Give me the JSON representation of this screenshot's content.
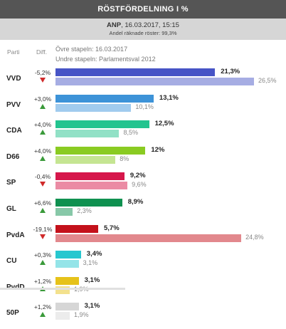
{
  "header": {
    "title": "RÖSTFÖRDELNING  I  %",
    "source_bold": "ANP",
    "source_rest": ", 16.03.2017, 15:15",
    "counted": "Andel räknade röster: 99,3%"
  },
  "columns": {
    "party": "Parti",
    "diff": "Diff."
  },
  "legend": {
    "upper": "Övre stapeln: 16.03.2017",
    "lower": "Undre stapeln: Parlamentsval 2012"
  },
  "chart_data": {
    "type": "bar",
    "title": "RÖSTFÖRDELNING  I  %",
    "categories": [
      "VVD",
      "PVV",
      "CDA",
      "D66",
      "SP",
      "GL",
      "PvdA",
      "CU",
      "PvdD",
      "50P"
    ],
    "series": [
      {
        "name": "Övre stapeln: 16.03.2017",
        "values": [
          21.3,
          13.1,
          12.5,
          12,
          9.2,
          8.9,
          5.7,
          3.4,
          3.1,
          3.1
        ],
        "labels": [
          "21,3%",
          "13,1%",
          "12,5%",
          "12%",
          "9,2%",
          "8,9%",
          "5,7%",
          "3,4%",
          "3,1%",
          "3,1%"
        ]
      },
      {
        "name": "Undre stapeln: Parlamentsval 2012",
        "values": [
          26.5,
          10.1,
          8.5,
          8,
          9.6,
          2.3,
          24.8,
          3.1,
          1.9,
          1.9
        ],
        "labels": [
          "26,5%",
          "10,1%",
          "8,5%",
          "8%",
          "9,6%",
          "2,3%",
          "24,8%",
          "3,1%",
          "1,9%",
          "1,9%"
        ]
      }
    ],
    "diff": [
      "-5,2%",
      "+3,0%",
      "+4,0%",
      "+4,0%",
      "-0,4%",
      "+6,6%",
      "-19,1%",
      "+0,3%",
      "+1,2%",
      "+1,2%"
    ],
    "direction": [
      "down",
      "up",
      "up",
      "up",
      "down",
      "up",
      "down",
      "up",
      "up",
      "up"
    ],
    "colors": {
      "upper": [
        "#4754c6",
        "#3d93d8",
        "#23c48f",
        "#8acb22",
        "#d6174b",
        "#0f9150",
        "#c4111b",
        "#27c7cf",
        "#e6c21a",
        "#d6d6d6"
      ],
      "lower": [
        "#a6ade3",
        "#a1cbee",
        "#92e1c6",
        "#c5e592",
        "#eb8ba4",
        "#87c8a8",
        "#e2888d",
        "#94e4e8",
        "#f3e18d",
        "#ececec"
      ]
    },
    "xlim": [
      0,
      27
    ],
    "grid": false
  }
}
